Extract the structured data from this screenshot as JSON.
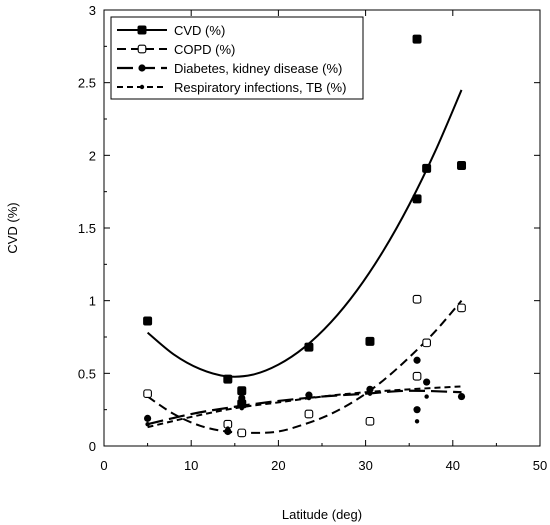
{
  "chart_data": {
    "type": "scatter",
    "title": "",
    "xlabel": "Latitude (deg)",
    "ylabel": "CVD (%)",
    "xlim": [
      0,
      50
    ],
    "ylim": [
      0,
      3
    ],
    "xticks": [
      "0",
      "10",
      "20",
      "30",
      "40",
      "50"
    ],
    "yticks": [
      "0",
      "0.5",
      "1",
      "1.5",
      "2",
      "2.5",
      "3"
    ],
    "grid": false,
    "legend_position": "top-left",
    "series": [
      {
        "name": "CVD (%)",
        "marker": "filled-square",
        "line": "solid",
        "points": [
          [
            5,
            0.86
          ],
          [
            14.2,
            0.46
          ],
          [
            15.8,
            0.38
          ],
          [
            15.8,
            0.29
          ],
          [
            23.5,
            0.68
          ],
          [
            30.5,
            0.72
          ],
          [
            35.9,
            1.7
          ],
          [
            35.9,
            2.8
          ],
          [
            37,
            1.91
          ],
          [
            41,
            1.93
          ]
        ],
        "fit": [
          [
            5,
            0.78
          ],
          [
            8,
            0.63
          ],
          [
            11,
            0.53
          ],
          [
            14,
            0.48
          ],
          [
            17,
            0.49
          ],
          [
            20,
            0.56
          ],
          [
            23,
            0.68
          ],
          [
            26,
            0.85
          ],
          [
            29,
            1.07
          ],
          [
            32,
            1.34
          ],
          [
            35,
            1.66
          ],
          [
            38,
            2.03
          ],
          [
            41,
            2.45
          ]
        ]
      },
      {
        "name": "COPD (%)",
        "marker": "open-square",
        "line": "dashed",
        "points": [
          [
            5,
            0.36
          ],
          [
            14.2,
            0.15
          ],
          [
            15.8,
            0.09
          ],
          [
            23.5,
            0.22
          ],
          [
            30.5,
            0.17
          ],
          [
            35.9,
            1.01
          ],
          [
            35.9,
            0.48
          ],
          [
            37,
            0.71
          ],
          [
            41,
            0.95
          ]
        ],
        "fit": [
          [
            5,
            0.34
          ],
          [
            8,
            0.22
          ],
          [
            11,
            0.14
          ],
          [
            14,
            0.1
          ],
          [
            17,
            0.09
          ],
          [
            20,
            0.1
          ],
          [
            23,
            0.15
          ],
          [
            26,
            0.22
          ],
          [
            29,
            0.32
          ],
          [
            32,
            0.45
          ],
          [
            35,
            0.61
          ],
          [
            38,
            0.79
          ],
          [
            41,
            1.0
          ]
        ]
      },
      {
        "name": "Diabetes, kidney disease (%)",
        "marker": "filled-circle",
        "line": "long-dash",
        "points": [
          [
            5,
            0.19
          ],
          [
            14.2,
            0.1
          ],
          [
            15.8,
            0.33
          ],
          [
            23.5,
            0.35
          ],
          [
            30.5,
            0.39
          ],
          [
            35.9,
            0.59
          ],
          [
            35.9,
            0.25
          ],
          [
            37,
            0.44
          ],
          [
            41,
            0.34
          ]
        ],
        "fit": [
          [
            5,
            0.15
          ],
          [
            10,
            0.22
          ],
          [
            15,
            0.27
          ],
          [
            20,
            0.31
          ],
          [
            25,
            0.34
          ],
          [
            30,
            0.36
          ],
          [
            35,
            0.38
          ],
          [
            41,
            0.37
          ]
        ]
      },
      {
        "name": "Respiratory infections, TB (%)",
        "marker": "small-dot",
        "line": "short-dash",
        "points": [
          [
            5,
            0.15
          ],
          [
            14.2,
            0.12
          ],
          [
            15.8,
            0.26
          ],
          [
            23.5,
            0.33
          ],
          [
            30.5,
            0.36
          ],
          [
            35.9,
            0.17
          ],
          [
            37,
            0.34
          ],
          [
            41,
            0.34
          ]
        ],
        "fit": [
          [
            5,
            0.13
          ],
          [
            10,
            0.2
          ],
          [
            15,
            0.26
          ],
          [
            20,
            0.3
          ],
          [
            25,
            0.34
          ],
          [
            30,
            0.37
          ],
          [
            35,
            0.39
          ],
          [
            41,
            0.41
          ]
        ]
      }
    ]
  },
  "colors": {
    "ink": "#000000",
    "background": "#ffffff"
  }
}
